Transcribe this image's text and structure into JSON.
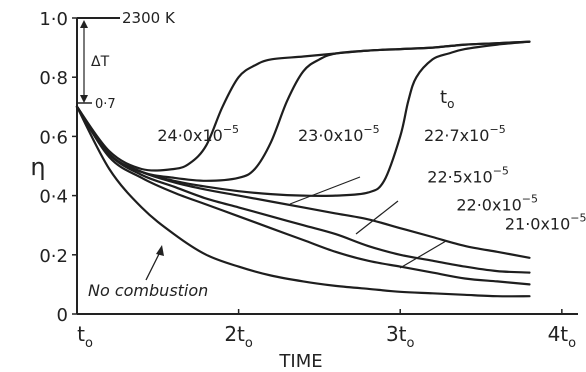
{
  "chart_data": {
    "type": "line",
    "title": "",
    "xlabel": "TIME",
    "ylabel": "η",
    "xlim": [
      1,
      4.1
    ],
    "ylim": [
      0,
      1.0
    ],
    "y_ticks": [
      "0",
      "0·2",
      "0·4",
      "0·6",
      "0·8",
      "1·0"
    ],
    "x_ticks": [
      {
        "base": "t",
        "sub": "o",
        "coef": "",
        "value": 1
      },
      {
        "base": "2t",
        "sub": "o",
        "coef": "",
        "value": 2
      },
      {
        "base": "3t",
        "sub": "o",
        "coef": "",
        "value": 3
      },
      {
        "base": "4t",
        "sub": "o",
        "coef": "",
        "value": 4
      }
    ],
    "annotations": {
      "top_label": "2300 K",
      "delta_label": "ΔT",
      "start_label": "0·7",
      "param_label": "t",
      "param_sub": "o",
      "no_combustion": "No combustion"
    },
    "series": [
      {
        "name": "24·0",
        "ignites": true,
        "x": [
          1.0,
          1.2,
          1.4,
          1.6,
          1.7,
          1.8,
          1.9,
          2.0,
          2.1,
          2.2,
          2.4,
          2.6,
          2.8,
          3.0,
          3.2,
          3.4,
          3.6,
          3.8
        ],
        "y": [
          0.7,
          0.55,
          0.49,
          0.49,
          0.51,
          0.57,
          0.7,
          0.8,
          0.84,
          0.86,
          0.87,
          0.88,
          0.89,
          0.895,
          0.9,
          0.91,
          0.915,
          0.92
        ]
      },
      {
        "name": "23·0",
        "ignites": true,
        "x": [
          1.0,
          1.2,
          1.4,
          1.6,
          1.8,
          2.0,
          2.1,
          2.2,
          2.3,
          2.4,
          2.5,
          2.6,
          2.8,
          3.0,
          3.2,
          3.4,
          3.6,
          3.8
        ],
        "y": [
          0.7,
          0.54,
          0.48,
          0.46,
          0.45,
          0.46,
          0.49,
          0.58,
          0.72,
          0.82,
          0.86,
          0.88,
          0.89,
          0.895,
          0.9,
          0.91,
          0.915,
          0.92
        ]
      },
      {
        "name": "22·7",
        "ignites": true,
        "x": [
          1.0,
          1.2,
          1.4,
          1.6,
          1.8,
          2.0,
          2.2,
          2.4,
          2.6,
          2.8,
          2.9,
          3.0,
          3.05,
          3.1,
          3.2,
          3.3,
          3.4,
          3.6,
          3.8
        ],
        "y": [
          0.7,
          0.54,
          0.48,
          0.45,
          0.43,
          0.415,
          0.405,
          0.4,
          0.4,
          0.41,
          0.45,
          0.6,
          0.72,
          0.8,
          0.86,
          0.88,
          0.895,
          0.91,
          0.92
        ]
      },
      {
        "name": "22·5",
        "ignites": false,
        "x": [
          1.0,
          1.2,
          1.4,
          1.6,
          1.8,
          2.0,
          2.2,
          2.4,
          2.6,
          2.8,
          3.0,
          3.2,
          3.4,
          3.6,
          3.8
        ],
        "y": [
          0.7,
          0.54,
          0.48,
          0.445,
          0.42,
          0.4,
          0.38,
          0.36,
          0.34,
          0.32,
          0.29,
          0.26,
          0.23,
          0.21,
          0.19
        ]
      },
      {
        "name": "22·0",
        "ignites": false,
        "x": [
          1.0,
          1.2,
          1.4,
          1.6,
          1.8,
          2.0,
          2.2,
          2.4,
          2.6,
          2.8,
          3.0,
          3.2,
          3.4,
          3.6,
          3.8
        ],
        "y": [
          0.7,
          0.54,
          0.47,
          0.43,
          0.39,
          0.36,
          0.33,
          0.3,
          0.27,
          0.23,
          0.2,
          0.18,
          0.16,
          0.145,
          0.14
        ]
      },
      {
        "name": "21·0",
        "ignites": false,
        "x": [
          1.0,
          1.2,
          1.4,
          1.6,
          1.8,
          2.0,
          2.2,
          2.4,
          2.6,
          2.8,
          3.0,
          3.2,
          3.4,
          3.6,
          3.8
        ],
        "y": [
          0.7,
          0.53,
          0.46,
          0.41,
          0.37,
          0.33,
          0.29,
          0.25,
          0.21,
          0.18,
          0.16,
          0.14,
          0.12,
          0.11,
          0.1
        ]
      },
      {
        "name": "No combustion",
        "ignites": false,
        "x": [
          1.0,
          1.2,
          1.4,
          1.6,
          1.8,
          2.0,
          2.2,
          2.4,
          2.6,
          2.8,
          3.0,
          3.2,
          3.4,
          3.6,
          3.8
        ],
        "y": [
          0.7,
          0.49,
          0.36,
          0.27,
          0.2,
          0.16,
          0.13,
          0.11,
          0.095,
          0.085,
          0.075,
          0.07,
          0.065,
          0.06,
          0.06
        ]
      }
    ],
    "curve_labels": [
      {
        "coef": "24·0",
        "exp": "−5",
        "x": 1.75,
        "y": 0.585
      },
      {
        "coef": "23·0",
        "exp": "−5",
        "x": 2.62,
        "y": 0.585
      },
      {
        "coef": "22·7",
        "exp": "−5",
        "x": 3.4,
        "y": 0.585
      },
      {
        "coef": "22·5",
        "exp": "−5",
        "x": 3.42,
        "y": 0.445
      },
      {
        "coef": "22·0",
        "exp": "−5",
        "x": 3.6,
        "y": 0.35
      },
      {
        "coef": "21·0",
        "exp": "−5",
        "x": 3.9,
        "y": 0.285
      }
    ]
  }
}
